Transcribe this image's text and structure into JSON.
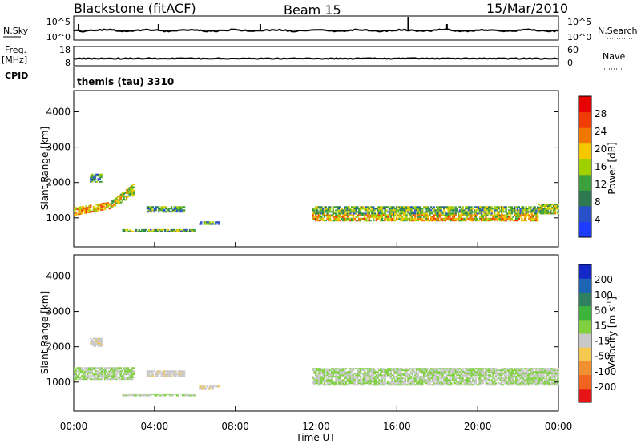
{
  "header": {
    "title": "Blackstone (fitACF)",
    "beam": "Beam 15",
    "date": "15/Mar/2010"
  },
  "param_panels": {
    "nsky_label": "N.Sky",
    "nsky_ticks": [
      "10^5",
      "10^0"
    ],
    "nsearch_label": "N.Search",
    "nsearch_ticks": [
      "10^5",
      "10^0"
    ],
    "freq_label": "Freq.",
    "freq_unit": "[MHz]",
    "freq_ticks": [
      "18",
      "8"
    ],
    "nave_label": "Nave",
    "nave_ticks": [
      "60",
      "0"
    ],
    "cpid_label": "CPID",
    "cpid_text": "themis (tau) 3310"
  },
  "axes": {
    "ylabel": "Slant Range [km]",
    "xlabel": "Time UT",
    "xticks": [
      "00:00",
      "04:00",
      "08:00",
      "12:00",
      "16:00",
      "20:00",
      "00:00"
    ],
    "yticks": [
      "1000",
      "2000",
      "3000",
      "4000"
    ]
  },
  "colorbars": {
    "power": {
      "label": "Power [dB]",
      "ticks": [
        "4",
        "8",
        "12",
        "16",
        "20",
        "24",
        "28"
      ],
      "colors": [
        "#1e3cff",
        "#2850c8",
        "#2e7a50",
        "#3ca03c",
        "#a0d000",
        "#f5c800",
        "#f07800",
        "#f03c00",
        "#e60000"
      ]
    },
    "velocity": {
      "label": "Velocity [m s",
      "label_sup": "-1",
      "label_close": "]",
      "ticks": [
        "200",
        "100",
        "50",
        "15",
        "-15",
        "-50",
        "-100",
        "-200"
      ],
      "colors": [
        "#1428c8",
        "#1e64b4",
        "#2e8060",
        "#3cb43c",
        "#80d040",
        "#c8c8c8",
        "#f5c850",
        "#f09030",
        "#f06420",
        "#e61414"
      ]
    }
  },
  "chart_data": [
    {
      "type": "heatmap",
      "title": "",
      "quantity": "Power [dB]",
      "xlabel": "",
      "ylabel": "Slant Range [km]",
      "xlim": [
        0,
        24
      ],
      "ylim": [
        180,
        4600
      ],
      "clim": [
        0,
        30
      ],
      "echoes": [
        {
          "t0": 0.0,
          "t1": 1.8,
          "r0": 1060,
          "r1": 1300,
          "r_end0": 1250,
          "r_end1": 1460,
          "value": 20
        },
        {
          "t0": 1.8,
          "t1": 3.0,
          "r0": 1250,
          "r1": 1460,
          "r_end0": 1650,
          "r_end1": 2000,
          "value": 16
        },
        {
          "t0": 0.8,
          "t1": 1.4,
          "r0": 2000,
          "r1": 2250,
          "value": 10
        },
        {
          "t0": 3.6,
          "t1": 5.5,
          "r0": 1150,
          "r1": 1330,
          "value": 10
        },
        {
          "t0": 2.4,
          "t1": 6.0,
          "r0": 600,
          "r1": 680,
          "value": 12
        },
        {
          "t0": 6.2,
          "t1": 7.2,
          "r0": 800,
          "r1": 900,
          "value": 10
        },
        {
          "t0": 11.8,
          "t1": 23.0,
          "r0": 900,
          "r1": 1100,
          "value": 18
        },
        {
          "t0": 11.8,
          "t1": 23.0,
          "r0": 1100,
          "r1": 1330,
          "value": 12
        },
        {
          "t0": 23.0,
          "t1": 24.0,
          "r0": 1100,
          "r1": 1400,
          "value": 14
        }
      ]
    },
    {
      "type": "heatmap",
      "title": "",
      "quantity": "Velocity [m s-1]",
      "xlabel": "Time UT",
      "ylabel": "Slant Range [km]",
      "xlim": [
        0,
        24
      ],
      "ylim": [
        180,
        4600
      ],
      "clim": [
        -200,
        200
      ],
      "echoes": [
        {
          "t0": 0.0,
          "t1": 3.0,
          "r0": 1060,
          "r1": 1420,
          "value": 0
        },
        {
          "t0": 0.8,
          "t1": 1.4,
          "r0": 2000,
          "r1": 2250,
          "value": 30
        },
        {
          "t0": 3.6,
          "t1": 5.5,
          "r0": 1150,
          "r1": 1330,
          "value": 30
        },
        {
          "t0": 2.4,
          "t1": 6.0,
          "r0": 600,
          "r1": 680,
          "value": 0
        },
        {
          "t0": 6.2,
          "t1": 7.2,
          "r0": 800,
          "r1": 900,
          "value": 30
        },
        {
          "t0": 11.8,
          "t1": 24.0,
          "r0": 900,
          "r1": 1400,
          "value": 0
        }
      ]
    }
  ]
}
